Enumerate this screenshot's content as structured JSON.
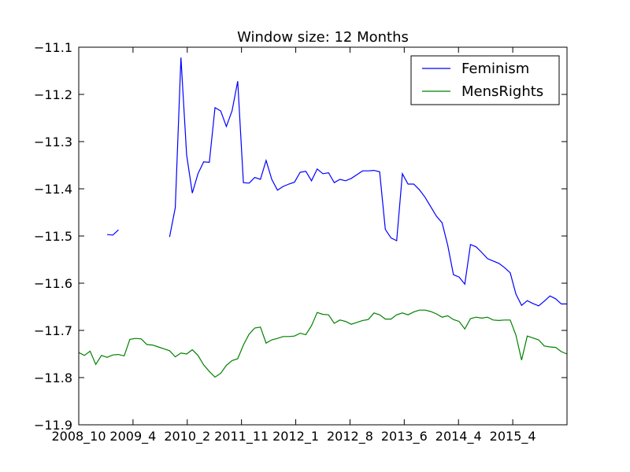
{
  "chart_data": {
    "type": "line",
    "title": "Window size: 12 Months",
    "xlabel": "",
    "ylabel": "",
    "x_tick_labels": [
      "2008_10",
      "2009_4",
      "2010_2",
      "2011_11",
      "2012_1",
      "2012_8",
      "2013_6",
      "2014_4",
      "2015_4"
    ],
    "y_tick_labels": [
      "−11.1",
      "−11.2",
      "−11.3",
      "−11.4",
      "−11.5",
      "−11.6",
      "−11.7",
      "−11.8",
      "−11.9"
    ],
    "ylim": [
      -11.9,
      -11.1
    ],
    "grid": false,
    "legend_position": "top-right",
    "series": [
      {
        "name": "Feminism",
        "color": "#0000ff",
        "values": [
          null,
          null,
          null,
          null,
          null,
          -11.497,
          -11.498,
          -11.487,
          null,
          null,
          null,
          null,
          null,
          null,
          null,
          null,
          -11.502,
          -11.44,
          -11.122,
          -11.328,
          -11.409,
          -11.368,
          -11.343,
          -11.344,
          -11.228,
          -11.235,
          -11.268,
          -11.235,
          -11.172,
          -11.387,
          -11.388,
          -11.376,
          -11.38,
          -11.34,
          -11.38,
          -11.403,
          -11.395,
          -11.39,
          -11.386,
          -11.365,
          -11.363,
          -11.383,
          -11.358,
          -11.368,
          -11.366,
          -11.387,
          -11.38,
          -11.383,
          -11.378,
          -11.37,
          -11.362,
          -11.362,
          -11.361,
          -11.364,
          -11.486,
          -11.504,
          -11.51,
          -11.368,
          -11.39,
          -11.39,
          -11.402,
          -11.418,
          -11.438,
          -11.458,
          -11.472,
          -11.52,
          -11.582,
          -11.587,
          -11.602,
          -11.518,
          -11.523,
          -11.535,
          -11.548,
          -11.553,
          -11.558,
          -11.567,
          -11.578,
          -11.623,
          -11.647,
          -11.637,
          -11.643,
          -11.648,
          -11.638,
          -11.627,
          -11.633,
          -11.644,
          -11.644
        ]
      },
      {
        "name": "MensRights",
        "color": "#008000",
        "values": [
          -11.747,
          -11.753,
          -11.744,
          -11.772,
          -11.753,
          -11.757,
          -11.752,
          -11.751,
          -11.754,
          -11.719,
          -11.717,
          -11.718,
          -11.73,
          -11.731,
          -11.735,
          -11.739,
          -11.743,
          -11.756,
          -11.748,
          -11.75,
          -11.741,
          -11.753,
          -11.773,
          -11.787,
          -11.799,
          -11.791,
          -11.774,
          -11.764,
          -11.76,
          -11.731,
          -11.708,
          -11.695,
          -11.693,
          -11.727,
          -11.72,
          -11.717,
          -11.713,
          -11.713,
          -11.712,
          -11.706,
          -11.709,
          -11.69,
          -11.662,
          -11.666,
          -11.667,
          -11.685,
          -11.678,
          -11.681,
          -11.687,
          -11.683,
          -11.679,
          -11.677,
          -11.663,
          -11.667,
          -11.676,
          -11.676,
          -11.667,
          -11.663,
          -11.667,
          -11.661,
          -11.657,
          -11.657,
          -11.66,
          -11.665,
          -11.672,
          -11.669,
          -11.677,
          -11.681,
          -11.697,
          -11.675,
          -11.672,
          -11.674,
          -11.672,
          -11.678,
          -11.679,
          -11.678,
          -11.678,
          -11.71,
          -11.763,
          -11.712,
          -11.716,
          -11.72,
          -11.733,
          -11.735,
          -11.736,
          -11.745,
          -11.75
        ]
      }
    ]
  }
}
